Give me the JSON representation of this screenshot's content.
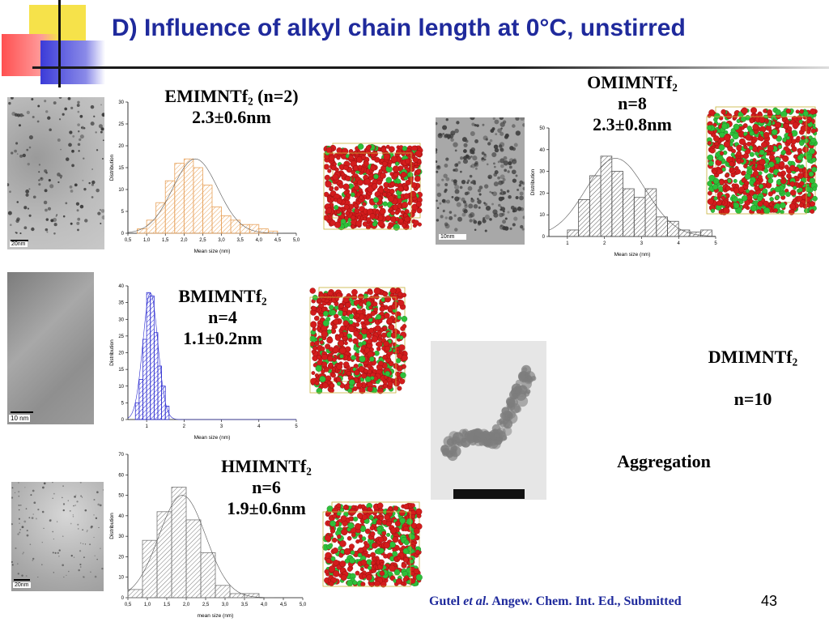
{
  "title": "D) Influence of alkyl chain length at 0°C, unstirred",
  "footer": {
    "author": "Gutel",
    "etal": "et al.",
    "journal": "Angew. Chem. Int. Ed., Submitted"
  },
  "page_number": "43",
  "samples": [
    {
      "name_main": "EMIMNTf",
      "name_sub": "2",
      "name_suffix": " (n=2)",
      "n": "",
      "size": "2.3±0.6nm",
      "scale": "20nm"
    },
    {
      "name_main": "BMIMNTf",
      "name_sub": "2",
      "name_suffix": "",
      "n": "n=4",
      "size": "1.1±0.2nm",
      "scale": "10 nm"
    },
    {
      "name_main": "HMIMNTf",
      "name_sub": "2",
      "name_suffix": "",
      "n": "n=6",
      "size": "1.9±0.6nm",
      "scale": "20nm"
    },
    {
      "name_main": "OMIMNTf",
      "name_sub": "2",
      "name_suffix": "",
      "n": "n=8",
      "size": "2.3±0.8nm",
      "scale": "10nm"
    },
    {
      "name_main": "DMIMNTf",
      "name_sub": "2",
      "name_suffix": "",
      "n": "n=10",
      "size": "",
      "scale": ""
    }
  ],
  "aggregation_label": "Aggregation",
  "chart_data": [
    {
      "type": "bar",
      "id": "emim",
      "xlabel": "Mean size (nm)",
      "ylabel": "Distribution",
      "bins_left": [
        0.75,
        1.0,
        1.25,
        1.5,
        1.75,
        2.0,
        2.25,
        2.5,
        2.75,
        3.0,
        3.25,
        3.5,
        3.75,
        4.0,
        4.25
      ],
      "bin_width": 0.25,
      "values": [
        1,
        3,
        7,
        12,
        16,
        17,
        15,
        11,
        6,
        4,
        3,
        2,
        2,
        1,
        0.5
      ],
      "xlim": [
        0.5,
        5.0
      ],
      "ylim": [
        0,
        30
      ],
      "xticks": [
        "0,5",
        "1,0",
        "1,5",
        "2,0",
        "2,5",
        "3,0",
        "3,5",
        "4,0",
        "4,5",
        "5,0"
      ],
      "yticks": [
        "0",
        "5",
        "10",
        "15",
        "20",
        "25",
        "30"
      ],
      "color": "#e8a25a",
      "hatch": "diag",
      "fit_mean": 2.3,
      "fit_sd": 0.6,
      "fit_peak": 17
    },
    {
      "type": "bar",
      "id": "bmim",
      "xlabel": "Mean size (nm)",
      "ylabel": "Distribution",
      "bins_left": [
        0.7,
        0.8,
        0.9,
        1.0,
        1.1,
        1.2,
        1.3,
        1.4,
        1.5
      ],
      "bin_width": 0.1,
      "values": [
        5,
        12,
        24,
        38,
        37,
        26,
        16,
        10,
        4
      ],
      "xlim": [
        0.5,
        5.0
      ],
      "ylim": [
        0,
        40
      ],
      "xticks": [
        "1",
        "2",
        "3",
        "4",
        "5"
      ],
      "yticks": [
        "0",
        "5",
        "10",
        "15",
        "20",
        "25",
        "30",
        "35",
        "40"
      ],
      "color": "#2b2bd0",
      "hatch": "diag",
      "fit_mean": 1.1,
      "fit_sd": 0.2,
      "fit_peak": 38
    },
    {
      "type": "bar",
      "id": "hmim",
      "xlabel": "mean size (nm)",
      "ylabel": "Distribution",
      "bins_left": [
        0.5,
        0.875,
        1.25,
        1.625,
        2.0,
        2.375,
        2.75,
        3.125,
        3.5,
        3.875
      ],
      "bin_width": 0.375,
      "values": [
        4,
        28,
        42,
        54,
        38,
        22,
        6,
        2,
        2,
        0
      ],
      "xlim": [
        0.5,
        5.0
      ],
      "ylim": [
        0,
        70
      ],
      "xticks": [
        "0,5",
        "1,0",
        "1,5",
        "2,0",
        "2,5",
        "3,0",
        "3,5",
        "4,0",
        "4,5",
        "5,0"
      ],
      "yticks": [
        "0",
        "10",
        "20",
        "30",
        "40",
        "50",
        "60",
        "70"
      ],
      "color": "#777777",
      "hatch": "diag",
      "fit_mean": 1.9,
      "fit_sd": 0.6,
      "fit_peak": 50
    },
    {
      "type": "bar",
      "id": "omim",
      "xlabel": "Mean size (nm)",
      "ylabel": "Distribution",
      "bins_left": [
        1.0,
        1.3,
        1.6,
        1.9,
        2.2,
        2.5,
        2.8,
        3.1,
        3.4,
        3.7,
        4.0,
        4.3,
        4.6
      ],
      "bin_width": 0.3,
      "values": [
        3,
        17,
        28,
        37,
        30,
        22,
        18,
        22,
        9,
        7,
        3,
        2,
        3
      ],
      "xlim": [
        0.5,
        5.0
      ],
      "ylim": [
        0,
        50
      ],
      "xticks": [
        "1",
        "2",
        "3",
        "4",
        "5"
      ],
      "yticks": [
        "0",
        "10",
        "20",
        "30",
        "40",
        "50"
      ],
      "color": "#555555",
      "hatch": "diag",
      "fit_mean": 2.3,
      "fit_sd": 0.8,
      "fit_peak": 36
    }
  ]
}
